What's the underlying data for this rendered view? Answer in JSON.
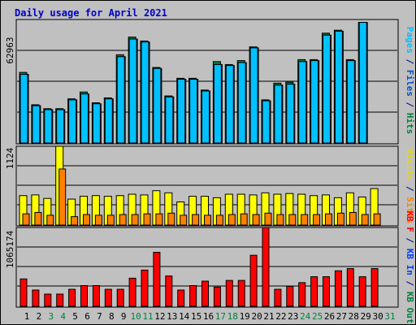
{
  "chart_data": [
    {
      "type": "bar",
      "title": "Daily usage for April 2021",
      "ymax_label": "62963",
      "ymax": 62963,
      "ylabels_right": [
        {
          "text": "Pages",
          "color": "#00c0ff"
        },
        {
          "text": " / ",
          "color": "#00008b"
        },
        {
          "text": "Files",
          "color": "#0050d0"
        },
        {
          "text": " / ",
          "color": "#00008b"
        },
        {
          "text": "Hits",
          "color": "#008040"
        }
      ],
      "categories": [
        "1",
        "2",
        "3",
        "4",
        "5",
        "6",
        "7",
        "8",
        "9",
        "10",
        "11",
        "12",
        "13",
        "14",
        "15",
        "16",
        "17",
        "18",
        "19",
        "20",
        "21",
        "22",
        "23",
        "24",
        "25",
        "26",
        "27",
        "28",
        "29",
        "30",
        "31"
      ],
      "weekend_days": [
        "3",
        "4",
        "10",
        "11",
        "17",
        "18",
        "24",
        "25",
        "31"
      ],
      "series": [
        {
          "name": "Hits",
          "color": "#008040",
          "values": [
            36000,
            19500,
            17500,
            17500,
            22500,
            26000,
            20500,
            23000,
            45000,
            54000,
            52000,
            38500,
            24000,
            33000,
            33000,
            27000,
            41500,
            40000,
            42000,
            49000,
            22000,
            30500,
            31000,
            42500,
            42500,
            56000,
            57500,
            42500,
            61500,
            null,
            null
          ]
        },
        {
          "name": "Files",
          "color": "#0050d0",
          "values": [
            35000,
            19000,
            17000,
            17000,
            22000,
            25000,
            20000,
            22500,
            44000,
            53000,
            51500,
            38000,
            23500,
            32500,
            32500,
            26500,
            40000,
            39500,
            41000,
            48500,
            21500,
            29500,
            30000,
            41500,
            42000,
            55000,
            57000,
            42000,
            61500,
            null,
            null
          ]
        },
        {
          "name": "Pages",
          "color": "#00c0ff",
          "values": [
            35000,
            19000,
            17000,
            17000,
            22000,
            25000,
            20000,
            22500,
            44000,
            53000,
            51500,
            38000,
            23500,
            32500,
            32500,
            26500,
            40000,
            39500,
            41000,
            48500,
            21500,
            29500,
            30000,
            41500,
            42000,
            55000,
            57000,
            42000,
            61500,
            null,
            null
          ]
        }
      ]
    },
    {
      "type": "bar",
      "ymax_label": "1124",
      "ymax": 1124,
      "ylabels_right": [
        {
          "text": "Visits",
          "color": "#e8d800"
        },
        {
          "text": " / ",
          "color": "#00008b"
        },
        {
          "text": "Sites",
          "color": "#ff8000"
        }
      ],
      "categories": [
        "1",
        "2",
        "3",
        "4",
        "5",
        "6",
        "7",
        "8",
        "9",
        "10",
        "11",
        "12",
        "13",
        "14",
        "15",
        "16",
        "17",
        "18",
        "19",
        "20",
        "21",
        "22",
        "23",
        "24",
        "25",
        "26",
        "27",
        "28",
        "29",
        "30",
        "31"
      ],
      "series": [
        {
          "name": "Visits",
          "color": "#ffff00",
          "values": [
            420,
            430,
            380,
            1124,
            370,
            410,
            420,
            410,
            420,
            440,
            430,
            490,
            460,
            330,
            410,
            410,
            390,
            440,
            440,
            430,
            460,
            440,
            450,
            440,
            420,
            430,
            390,
            460,
            400,
            520,
            null
          ]
        },
        {
          "name": "Sites",
          "color": "#ff8000",
          "values": [
            160,
            180,
            140,
            800,
            120,
            150,
            140,
            140,
            150,
            150,
            160,
            160,
            170,
            140,
            150,
            140,
            140,
            150,
            160,
            150,
            170,
            150,
            150,
            150,
            150,
            160,
            170,
            180,
            150,
            160,
            null
          ]
        }
      ]
    },
    {
      "type": "bar",
      "ymax_label": "1065174",
      "ymax": 1065174,
      "ylabels_right": [
        {
          "text": "KB F",
          "color": "#ff0000"
        },
        {
          "text": " / ",
          "color": "#00008b"
        },
        {
          "text": "KB In",
          "color": "#0040ff"
        },
        {
          "text": " / ",
          "color": "#00008b"
        },
        {
          "text": "KB Out",
          "color": "#008040"
        }
      ],
      "categories": [
        "1",
        "2",
        "3",
        "4",
        "5",
        "6",
        "7",
        "8",
        "9",
        "10",
        "11",
        "12",
        "13",
        "14",
        "15",
        "16",
        "17",
        "18",
        "19",
        "20",
        "21",
        "22",
        "23",
        "24",
        "25",
        "26",
        "27",
        "28",
        "29",
        "30",
        "31"
      ],
      "series": [
        {
          "name": "KB F",
          "color": "#ff0000",
          "values": [
            370000,
            220000,
            165000,
            165000,
            230000,
            280000,
            280000,
            230000,
            230000,
            380000,
            490000,
            730000,
            410000,
            220000,
            280000,
            340000,
            260000,
            350000,
            350000,
            690000,
            1065174,
            230000,
            270000,
            320000,
            400000,
            400000,
            480000,
            510000,
            400000,
            510000,
            null
          ]
        }
      ]
    }
  ]
}
